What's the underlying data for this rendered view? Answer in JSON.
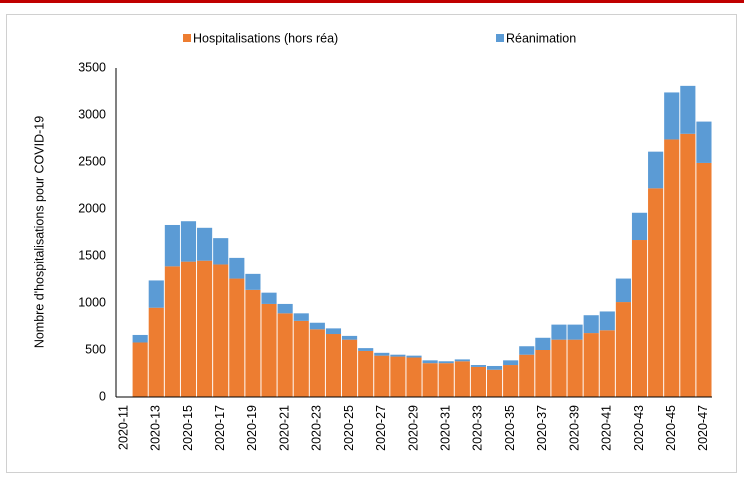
{
  "chart_data": {
    "type": "stacked_bar",
    "y_label": "Nombre d'hospitalisations pour COVID-19",
    "categories": [
      "2020-11",
      null,
      "2020-13",
      null,
      "2020-15",
      null,
      "2020-17",
      null,
      "2020-19",
      null,
      "2020-21",
      null,
      "2020-23",
      null,
      "2020-25",
      null,
      "2020-27",
      null,
      "2020-29",
      null,
      "2020-31",
      null,
      "2020-33",
      null,
      "2020-35",
      null,
      "2020-37",
      null,
      "2020-39",
      null,
      "2020-41",
      null,
      "2020-43",
      null,
      "2020-45",
      null,
      "2020-47"
    ],
    "series": [
      {
        "name": "Hospitalisations (hors réa)",
        "color": "#ed7d31",
        "values": [
          0,
          580,
          950,
          1390,
          1440,
          1450,
          1410,
          1260,
          1140,
          990,
          890,
          810,
          720,
          670,
          610,
          490,
          440,
          430,
          420,
          360,
          360,
          380,
          320,
          290,
          340,
          450,
          500,
          610,
          610,
          680,
          710,
          1010,
          1670,
          2220,
          2740,
          2800,
          2490
        ]
      },
      {
        "name": "Réanimation",
        "color": "#5b9bd5",
        "values": [
          0,
          80,
          290,
          440,
          430,
          350,
          280,
          220,
          170,
          120,
          100,
          80,
          70,
          60,
          40,
          30,
          30,
          20,
          20,
          30,
          20,
          20,
          20,
          40,
          50,
          90,
          130,
          160,
          160,
          190,
          200,
          250,
          290,
          390,
          500,
          510,
          440
        ]
      }
    ],
    "ylim": [
      0,
      3500
    ],
    "yticks": [
      0,
      500,
      1000,
      1500,
      2000,
      2500,
      3000,
      3500
    ],
    "grid": false
  }
}
